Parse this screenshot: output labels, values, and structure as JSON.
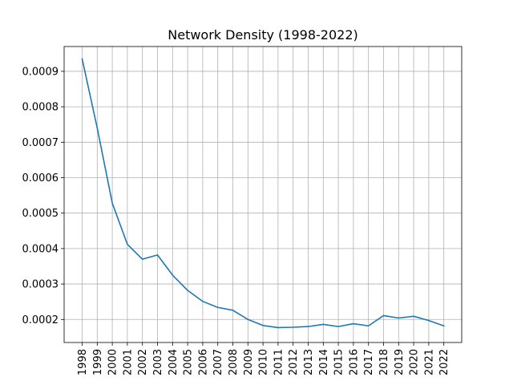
{
  "chart_data": {
    "type": "line",
    "title": "Network Density (1998-2022)",
    "xlabel": "",
    "ylabel": "",
    "grid": true,
    "line_color": "#1f77b4",
    "ylim": [
      0.000135,
      0.00097
    ],
    "y_ticks": [
      0.0002,
      0.0003,
      0.0004,
      0.0005,
      0.0006,
      0.0007,
      0.0008,
      0.0009
    ],
    "y_tick_labels": [
      "0.0002",
      "0.0003",
      "0.0004",
      "0.0005",
      "0.0006",
      "0.0007",
      "0.0008",
      "0.0009"
    ],
    "categories": [
      "1998",
      "1999",
      "2000",
      "2001",
      "2002",
      "2003",
      "2004",
      "2005",
      "2006",
      "2007",
      "2008",
      "2009",
      "2010",
      "2011",
      "2012",
      "2013",
      "2014",
      "2015",
      "2016",
      "2017",
      "2018",
      "2019",
      "2020",
      "2021",
      "2022"
    ],
    "values": [
      0.000935,
      0.00074,
      0.000528,
      0.000412,
      0.00037,
      0.000382,
      0.000325,
      0.000282,
      0.000251,
      0.000234,
      0.000226,
      0.0002,
      0.000183,
      0.000177,
      0.000178,
      0.00018,
      0.000186,
      0.00018,
      0.000188,
      0.000182,
      0.000211,
      0.000204,
      0.000209,
      0.000197,
      0.000182
    ]
  }
}
